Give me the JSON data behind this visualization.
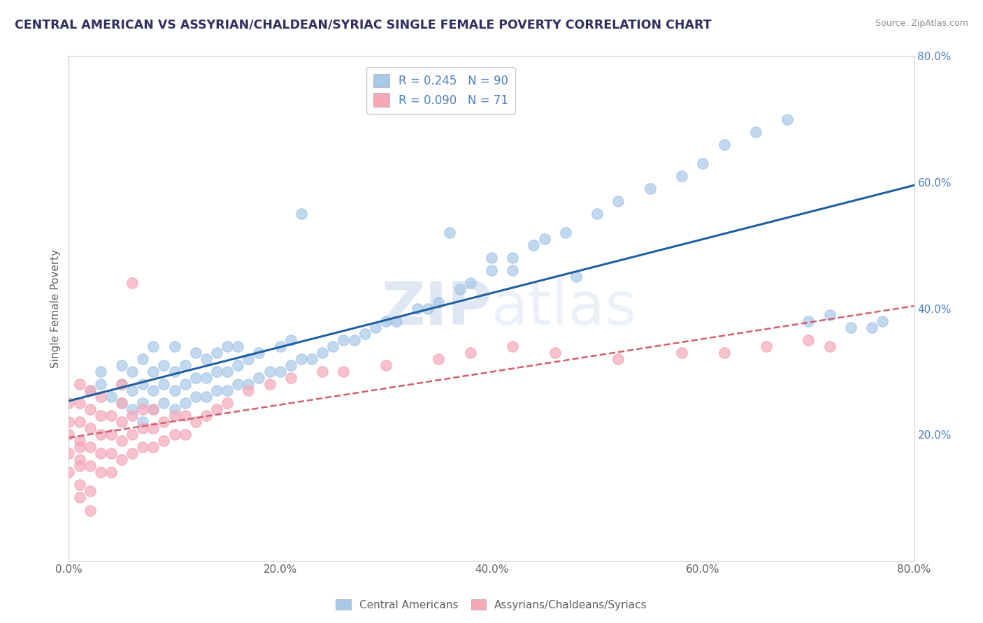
{
  "title": "CENTRAL AMERICAN VS ASSYRIAN/CHALDEAN/SYRIAC SINGLE FEMALE POVERTY CORRELATION CHART",
  "source": "Source: ZipAtlas.com",
  "ylabel": "Single Female Poverty",
  "xlim": [
    0,
    0.8
  ],
  "ylim": [
    0,
    0.8
  ],
  "xtick_labels": [
    "0.0%",
    "20.0%",
    "40.0%",
    "60.0%",
    "80.0%"
  ],
  "xtick_vals": [
    0.0,
    0.2,
    0.4,
    0.6,
    0.8
  ],
  "ytick_labels": [
    "20.0%",
    "40.0%",
    "60.0%",
    "80.0%"
  ],
  "ytick_vals": [
    0.2,
    0.4,
    0.6,
    0.8
  ],
  "blue_R": 0.245,
  "blue_N": 90,
  "pink_R": 0.09,
  "pink_N": 71,
  "blue_color": "#a8c8e8",
  "pink_color": "#f4a8b8",
  "blue_line_color": "#2060a0",
  "pink_line_color": "#d06070",
  "legend_label_blue": "Central Americans",
  "legend_label_pink": "Assyrians/Chaldeans/Syriacs",
  "background_color": "#ffffff",
  "grid_color": "#d0d0d0",
  "title_color": "#303060",
  "axis_label_color": "#606060",
  "blue_scatter_x": [
    0.02,
    0.03,
    0.03,
    0.04,
    0.05,
    0.05,
    0.05,
    0.06,
    0.06,
    0.06,
    0.07,
    0.07,
    0.07,
    0.07,
    0.08,
    0.08,
    0.08,
    0.08,
    0.09,
    0.09,
    0.09,
    0.1,
    0.1,
    0.1,
    0.1,
    0.11,
    0.11,
    0.11,
    0.12,
    0.12,
    0.12,
    0.13,
    0.13,
    0.13,
    0.14,
    0.14,
    0.14,
    0.15,
    0.15,
    0.15,
    0.16,
    0.16,
    0.16,
    0.17,
    0.17,
    0.18,
    0.18,
    0.19,
    0.2,
    0.2,
    0.21,
    0.21,
    0.22,
    0.23,
    0.24,
    0.25,
    0.26,
    0.27,
    0.28,
    0.29,
    0.3,
    0.31,
    0.33,
    0.34,
    0.35,
    0.37,
    0.38,
    0.4,
    0.42,
    0.44,
    0.45,
    0.47,
    0.5,
    0.52,
    0.55,
    0.58,
    0.6,
    0.62,
    0.65,
    0.68,
    0.7,
    0.72,
    0.74,
    0.76,
    0.36,
    0.4,
    0.42,
    0.48,
    0.22,
    0.77
  ],
  "blue_scatter_y": [
    0.27,
    0.28,
    0.3,
    0.26,
    0.25,
    0.28,
    0.31,
    0.24,
    0.27,
    0.3,
    0.22,
    0.25,
    0.28,
    0.32,
    0.24,
    0.27,
    0.3,
    0.34,
    0.25,
    0.28,
    0.31,
    0.24,
    0.27,
    0.3,
    0.34,
    0.25,
    0.28,
    0.31,
    0.26,
    0.29,
    0.33,
    0.26,
    0.29,
    0.32,
    0.27,
    0.3,
    0.33,
    0.27,
    0.3,
    0.34,
    0.28,
    0.31,
    0.34,
    0.28,
    0.32,
    0.29,
    0.33,
    0.3,
    0.3,
    0.34,
    0.31,
    0.35,
    0.32,
    0.32,
    0.33,
    0.34,
    0.35,
    0.35,
    0.36,
    0.37,
    0.38,
    0.38,
    0.4,
    0.4,
    0.41,
    0.43,
    0.44,
    0.46,
    0.48,
    0.5,
    0.51,
    0.52,
    0.55,
    0.57,
    0.59,
    0.61,
    0.63,
    0.66,
    0.68,
    0.7,
    0.38,
    0.39,
    0.37,
    0.37,
    0.52,
    0.48,
    0.46,
    0.45,
    0.55,
    0.38
  ],
  "pink_scatter_x": [
    0.0,
    0.0,
    0.0,
    0.0,
    0.0,
    0.01,
    0.01,
    0.01,
    0.01,
    0.01,
    0.01,
    0.01,
    0.01,
    0.01,
    0.02,
    0.02,
    0.02,
    0.02,
    0.02,
    0.02,
    0.02,
    0.03,
    0.03,
    0.03,
    0.03,
    0.03,
    0.04,
    0.04,
    0.04,
    0.04,
    0.05,
    0.05,
    0.05,
    0.05,
    0.05,
    0.06,
    0.06,
    0.06,
    0.07,
    0.07,
    0.07,
    0.08,
    0.08,
    0.08,
    0.09,
    0.09,
    0.1,
    0.1,
    0.11,
    0.11,
    0.12,
    0.13,
    0.14,
    0.15,
    0.17,
    0.19,
    0.21,
    0.24,
    0.26,
    0.3,
    0.35,
    0.38,
    0.42,
    0.46,
    0.52,
    0.58,
    0.62,
    0.66,
    0.7,
    0.72,
    0.06
  ],
  "pink_scatter_y": [
    0.2,
    0.22,
    0.17,
    0.14,
    0.25,
    0.16,
    0.19,
    0.22,
    0.25,
    0.28,
    0.12,
    0.15,
    0.18,
    0.1,
    0.15,
    0.18,
    0.21,
    0.24,
    0.27,
    0.08,
    0.11,
    0.14,
    0.17,
    0.2,
    0.23,
    0.26,
    0.14,
    0.17,
    0.2,
    0.23,
    0.16,
    0.19,
    0.22,
    0.25,
    0.28,
    0.17,
    0.2,
    0.23,
    0.18,
    0.21,
    0.24,
    0.18,
    0.21,
    0.24,
    0.19,
    0.22,
    0.2,
    0.23,
    0.2,
    0.23,
    0.22,
    0.23,
    0.24,
    0.25,
    0.27,
    0.28,
    0.29,
    0.3,
    0.3,
    0.31,
    0.32,
    0.33,
    0.34,
    0.33,
    0.32,
    0.33,
    0.33,
    0.34,
    0.35,
    0.34,
    0.44
  ]
}
